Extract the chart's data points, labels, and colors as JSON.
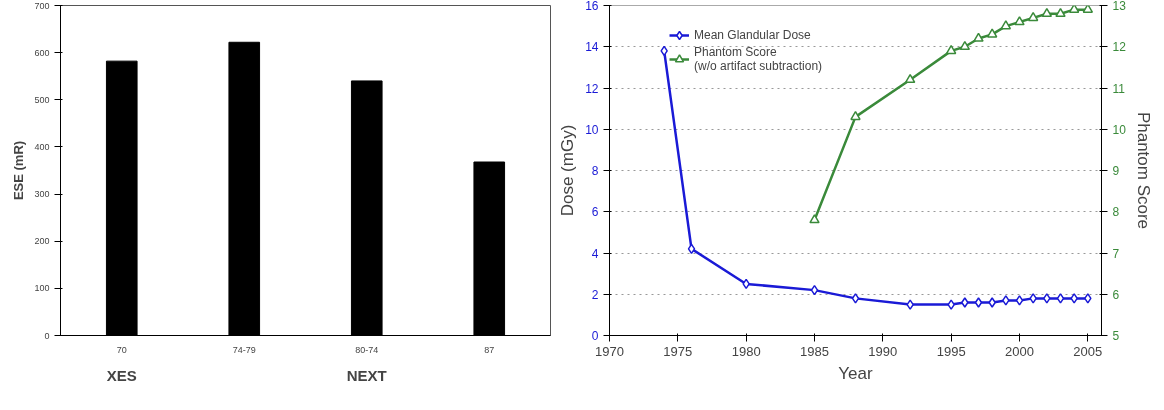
{
  "chart_data": [
    {
      "type": "bar",
      "ylabel": "ESE (mR)",
      "categories": [
        "70",
        "74-79",
        "80-74",
        "87"
      ],
      "values": [
        582,
        622,
        540,
        368
      ],
      "color": "#000000",
      "ylim": [
        0,
        700
      ],
      "yticks": [
        0,
        100,
        200,
        300,
        400,
        500,
        600,
        700
      ],
      "grid": false,
      "annotations": [
        "XES",
        "NEXT"
      ]
    },
    {
      "type": "line",
      "xlabel": "Year",
      "ylabel": "Dose (mGy)",
      "y2label": "Phantom Score",
      "xlim": [
        1970,
        2006
      ],
      "xticks": [
        1970,
        1975,
        1980,
        1985,
        1990,
        1995,
        2000,
        2005
      ],
      "ylim": [
        0,
        16
      ],
      "yticks": [
        0,
        2,
        4,
        6,
        8,
        10,
        12,
        14,
        16
      ],
      "y2lim": [
        5,
        13
      ],
      "y2ticks": [
        5,
        6,
        7,
        8,
        9,
        10,
        11,
        12,
        13
      ],
      "grid": "y",
      "legend": "top left",
      "line_style": "solid",
      "series": [
        {
          "name": "Mean Glandular Dose",
          "color": "#1a1ad6",
          "marker": "diamond",
          "x": [
            1974,
            1976,
            1980,
            1985,
            1988,
            1992,
            1995,
            1996,
            1997,
            1998,
            1999,
            2000,
            2001,
            2002,
            2003,
            2004,
            2005
          ],
          "values": [
            13.8,
            4.2,
            2.5,
            2.2,
            1.8,
            1.5,
            1.5,
            1.6,
            1.6,
            1.6,
            1.7,
            1.7,
            1.8,
            1.8,
            1.8,
            1.8,
            1.8
          ]
        },
        {
          "name": "Phantom Score\n(w/o artifact subtraction)",
          "color": "#3a8a3a",
          "marker": "triangle",
          "axis": "y2",
          "x": [
            1985,
            1988,
            1992,
            1995,
            1996,
            1997,
            1998,
            1999,
            2000,
            2001,
            2002,
            2003,
            2004,
            2005
          ],
          "values": [
            7.8,
            10.3,
            11.2,
            11.9,
            12.0,
            12.2,
            12.3,
            12.5,
            12.6,
            12.7,
            12.8,
            12.8,
            12.9,
            12.9
          ]
        }
      ]
    }
  ]
}
